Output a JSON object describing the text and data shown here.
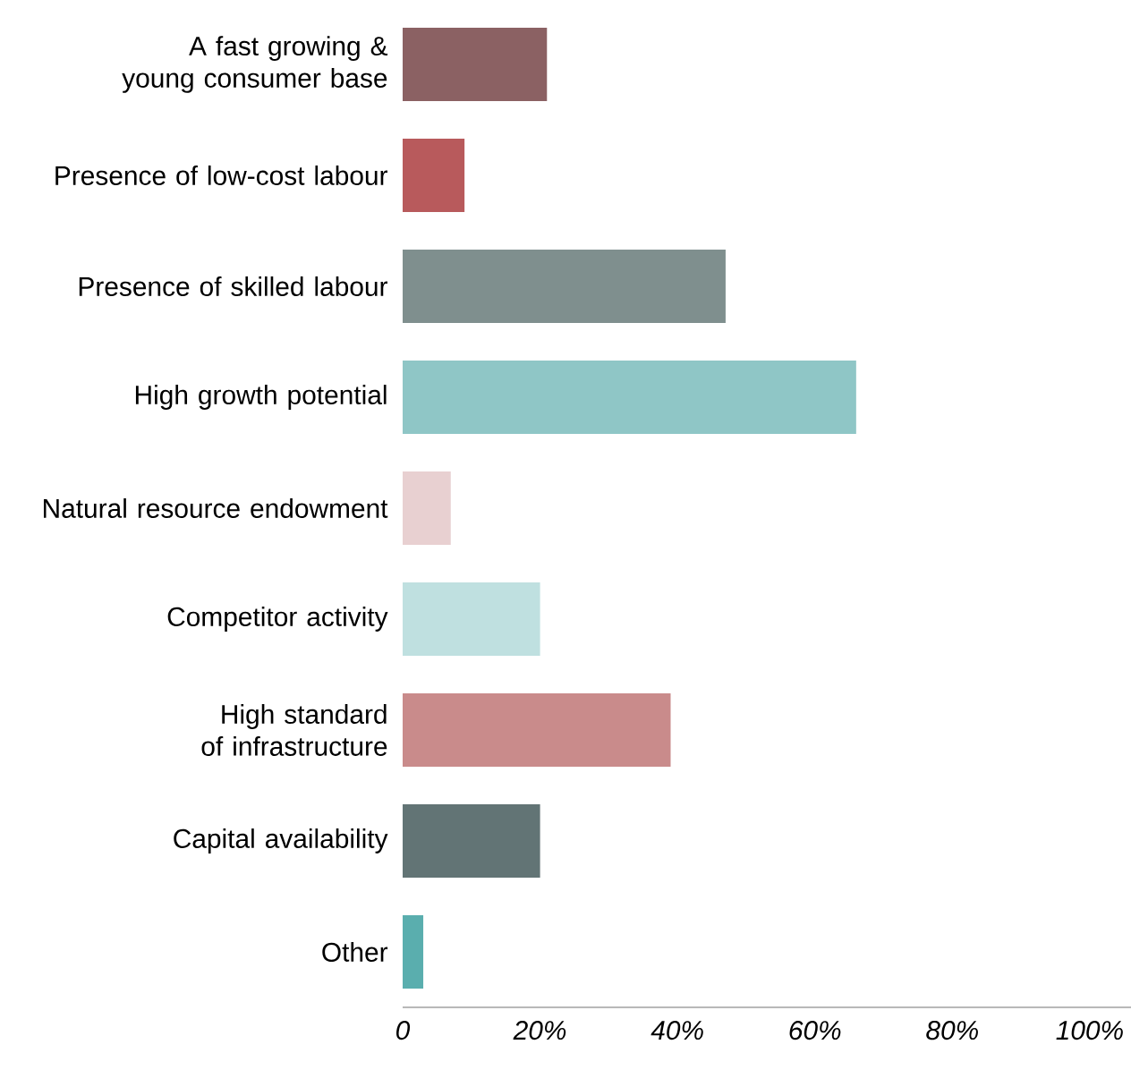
{
  "chart_data": {
    "type": "bar",
    "orientation": "horizontal",
    "categories": [
      "A fast growing & young consumer base",
      "Presence of low-cost labour",
      "Presence of skilled labour",
      "High growth potential",
      "Natural resource endowment",
      "Competitor activity",
      "High standard of infrastructure",
      "Capital availability",
      "Other"
    ],
    "values": [
      21,
      9,
      47,
      66,
      7,
      20,
      39,
      20,
      3
    ],
    "colors": [
      "#8b6163",
      "#b85a5c",
      "#7f8f8e",
      "#8fc6c6",
      "#e8d0d1",
      "#bfe0e0",
      "#c98b8b",
      "#627475",
      "#5aaeae"
    ],
    "xlim": [
      0,
      106
    ],
    "xticks": [
      0,
      {
        "value": 20,
        "label": "20%"
      },
      {
        "value": 40,
        "label": "40%"
      },
      {
        "value": 60,
        "label": "60%"
      },
      {
        "value": 80,
        "label": "80%"
      },
      {
        "value": 100,
        "label": "100%"
      }
    ]
  }
}
